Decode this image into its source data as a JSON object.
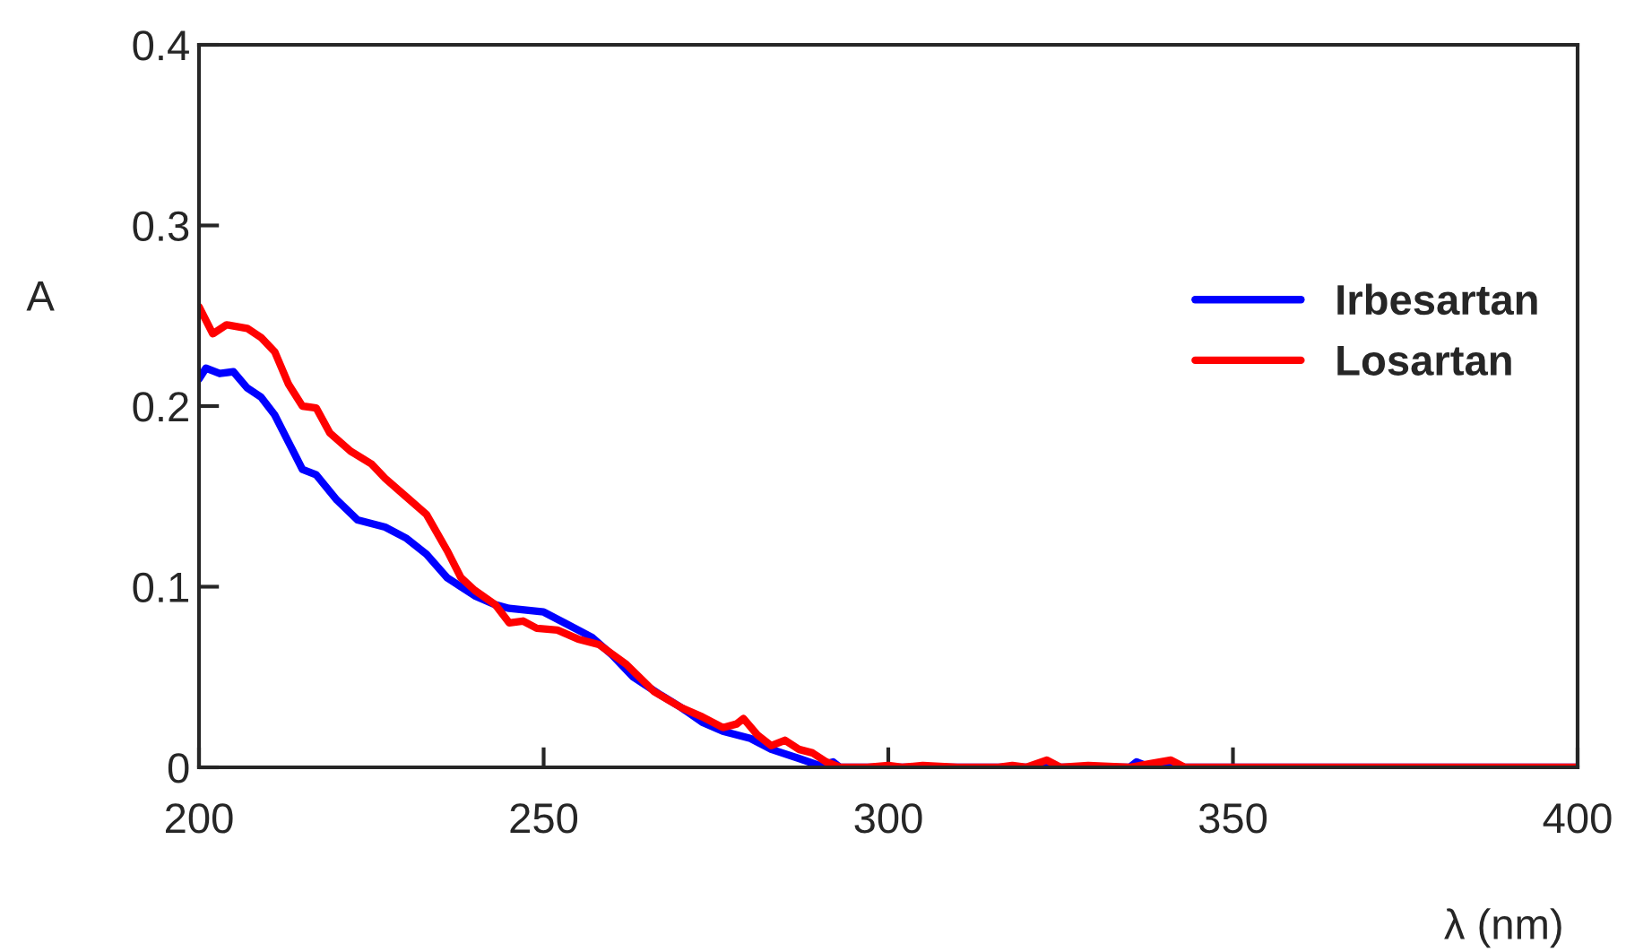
{
  "chart_data": {
    "type": "line",
    "xlabel": "λ (nm)",
    "ylabel": "A",
    "xlim": [
      200,
      400
    ],
    "xticks": [
      200,
      250,
      300,
      350,
      400
    ],
    "ylim": [
      0,
      0.4
    ],
    "yticks": [
      0,
      0.1,
      0.2,
      0.3,
      0.4
    ],
    "grid": false,
    "legend": "right",
    "marker": "none",
    "line_style": "solid",
    "series": [
      {
        "name": "Irbesartan",
        "color": "#0000ff",
        "x": [
          200,
          201,
          203,
          205,
          207,
          209,
          211,
          213,
          215,
          217,
          220,
          223,
          227,
          230,
          233,
          236,
          240,
          243,
          245,
          250,
          253,
          257,
          260,
          263,
          267,
          270,
          273,
          276,
          280,
          283,
          287,
          290,
          292,
          293,
          300,
          335,
          336,
          338,
          341,
          343,
          400
        ],
        "values": [
          0.215,
          0.221,
          0.218,
          0.219,
          0.21,
          0.205,
          0.195,
          0.18,
          0.165,
          0.162,
          0.148,
          0.137,
          0.133,
          0.127,
          0.118,
          0.105,
          0.095,
          0.09,
          0.088,
          0.086,
          0.08,
          0.072,
          0.062,
          0.05,
          0.04,
          0.033,
          0.025,
          0.02,
          0.016,
          0.01,
          0.005,
          0.001,
          0.003,
          0,
          0,
          0,
          0.003,
          0,
          0.002,
          0,
          0
        ]
      },
      {
        "name": "Losartan",
        "color": "#ff0000",
        "x": [
          200,
          202,
          204,
          207,
          209,
          211,
          213,
          215,
          217,
          219,
          222,
          225,
          227,
          230,
          233,
          236,
          238,
          240,
          243,
          245,
          247,
          249,
          252,
          255,
          258,
          262,
          266,
          270,
          273,
          276,
          278,
          279,
          281,
          283,
          285,
          287,
          289,
          291,
          293,
          297,
          300,
          302,
          305,
          310,
          316,
          318,
          320,
          323,
          325,
          329,
          335,
          338,
          341,
          343,
          400
        ],
        "values": [
          0.255,
          0.24,
          0.245,
          0.243,
          0.238,
          0.23,
          0.212,
          0.2,
          0.199,
          0.185,
          0.175,
          0.168,
          0.16,
          0.15,
          0.14,
          0.12,
          0.105,
          0.098,
          0.09,
          0.08,
          0.081,
          0.077,
          0.076,
          0.071,
          0.068,
          0.057,
          0.042,
          0.033,
          0.028,
          0.022,
          0.024,
          0.027,
          0.018,
          0.012,
          0.015,
          0.01,
          0.008,
          0.003,
          0,
          0,
          0.001,
          0,
          0.001,
          0,
          0,
          0.001,
          0,
          0.004,
          0,
          0.001,
          0,
          0.002,
          0.004,
          0,
          0
        ]
      }
    ]
  }
}
